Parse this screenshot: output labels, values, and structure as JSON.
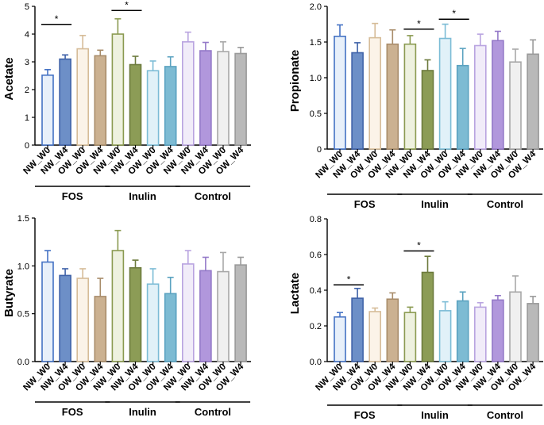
{
  "colors": {
    "series": [
      {
        "fill": "#e8f0fa",
        "stroke": "#4472c4"
      },
      {
        "fill": "#6d8fc7",
        "stroke": "#3f62a8"
      },
      {
        "fill": "#fbf3e8",
        "stroke": "#d6bc98"
      },
      {
        "fill": "#cbb191",
        "stroke": "#a88c6a"
      },
      {
        "fill": "#eef1df",
        "stroke": "#8a9a50"
      },
      {
        "fill": "#8c9c56",
        "stroke": "#6c7a3c"
      },
      {
        "fill": "#e1f1f8",
        "stroke": "#7cbcd6"
      },
      {
        "fill": "#7dbbd3",
        "stroke": "#5aa2c0"
      },
      {
        "fill": "#f1ecf9",
        "stroke": "#b9a4e0"
      },
      {
        "fill": "#b197dc",
        "stroke": "#9479c8"
      },
      {
        "fill": "#f0f0f0",
        "stroke": "#a8a8a8"
      },
      {
        "fill": "#b9b9b9",
        "stroke": "#9a9a9a"
      }
    ]
  },
  "chart_data": [
    {
      "type": "bar",
      "ylabel": "Acetate",
      "categories": [
        "NW_W0",
        "NW_W4",
        "OW_W0",
        "OW_W4",
        "NW_W0",
        "NW_W4",
        "OW_W0",
        "OW_W4",
        "NW_W0",
        "NW_W4",
        "OW_W0",
        "OW_W4"
      ],
      "groups": [
        "FOS",
        "Inulin",
        "Control"
      ],
      "values": [
        2.52,
        3.1,
        3.47,
        3.22,
        4.0,
        2.9,
        2.68,
        2.83,
        3.72,
        3.4,
        3.37,
        3.3
      ],
      "errors": [
        0.2,
        0.15,
        0.48,
        0.2,
        0.55,
        0.3,
        0.35,
        0.35,
        0.35,
        0.3,
        0.35,
        0.22
      ],
      "ylim": [
        0,
        5
      ],
      "yticks": [
        "0",
        "1",
        "2",
        "3",
        "4",
        "5"
      ],
      "ytick_values": [
        0,
        1,
        2,
        3,
        4,
        5
      ],
      "significance": [
        {
          "from": 0,
          "to": 1,
          "level": 4.35,
          "label": "*"
        },
        {
          "from": 4,
          "to": 5,
          "level": 4.85,
          "label": "*"
        }
      ]
    },
    {
      "type": "bar",
      "ylabel": "Propionate",
      "categories": [
        "NW_W0",
        "NW_W4",
        "OW_W0",
        "OW_W4",
        "NW_W0",
        "NW_W4",
        "OW_W0",
        "OW_W4",
        "NW_W0",
        "NW_W4",
        "OW_W0",
        "OW_W4"
      ],
      "groups": [
        "FOS",
        "Inulin",
        "Control"
      ],
      "values": [
        1.58,
        1.35,
        1.56,
        1.47,
        1.47,
        1.1,
        1.55,
        1.17,
        1.45,
        1.52,
        1.22,
        1.33
      ],
      "errors": [
        0.16,
        0.14,
        0.2,
        0.2,
        0.12,
        0.15,
        0.2,
        0.24,
        0.16,
        0.13,
        0.18,
        0.2
      ],
      "ylim": [
        0,
        2.0
      ],
      "yticks": [
        "0",
        "0.5",
        "1.0",
        "1.5",
        "2.0"
      ],
      "ytick_values": [
        0,
        0.5,
        1.0,
        1.5,
        2.0
      ],
      "significance": [
        {
          "from": 4,
          "to": 5,
          "level": 1.68,
          "label": "*"
        },
        {
          "from": 6,
          "to": 7,
          "level": 1.82,
          "label": "*"
        }
      ]
    },
    {
      "type": "bar",
      "ylabel": "Butyrate",
      "categories": [
        "NW_W0",
        "NW_W4",
        "OW_W0",
        "OW_W4",
        "NW_W0",
        "NW_W4",
        "OW_W0",
        "OW_W4",
        "NW_W0",
        "NW_W4",
        "OW_W0",
        "OW_W4"
      ],
      "groups": [
        "FOS",
        "Inulin",
        "Control"
      ],
      "values": [
        1.04,
        0.9,
        0.87,
        0.68,
        1.16,
        0.98,
        0.81,
        0.71,
        1.02,
        0.95,
        0.94,
        1.01
      ],
      "errors": [
        0.12,
        0.07,
        0.1,
        0.19,
        0.21,
        0.08,
        0.16,
        0.17,
        0.14,
        0.14,
        0.2,
        0.08
      ],
      "ylim": [
        0,
        1.5
      ],
      "yticks": [
        "0.0",
        "0.5",
        "1.0",
        "1.5"
      ],
      "ytick_values": [
        0,
        0.5,
        1.0,
        1.5
      ],
      "significance": []
    },
    {
      "type": "bar",
      "ylabel": "Lactate",
      "categories": [
        "NW_W0",
        "NW_W4",
        "OW_W0",
        "OW_W4",
        "NW_W0",
        "NW_W4",
        "OW_W0",
        "OW_W4",
        "NW_W0",
        "NW_W4",
        "OW_W0",
        "OW_W4"
      ],
      "groups": [
        "FOS",
        "Inulin",
        "Control"
      ],
      "values": [
        0.25,
        0.355,
        0.28,
        0.35,
        0.275,
        0.5,
        0.285,
        0.34,
        0.305,
        0.345,
        0.39,
        0.325
      ],
      "errors": [
        0.025,
        0.055,
        0.02,
        0.035,
        0.03,
        0.09,
        0.05,
        0.05,
        0.025,
        0.025,
        0.09,
        0.04
      ],
      "ylim": [
        0,
        0.8
      ],
      "yticks": [
        "0.0",
        "0.2",
        "0.4",
        "0.6",
        "0.8"
      ],
      "ytick_values": [
        0,
        0.2,
        0.4,
        0.6,
        0.8
      ],
      "significance": [
        {
          "from": 0,
          "to": 1,
          "level": 0.43,
          "label": "*"
        },
        {
          "from": 4,
          "to": 5,
          "level": 0.62,
          "label": "*"
        }
      ]
    }
  ]
}
